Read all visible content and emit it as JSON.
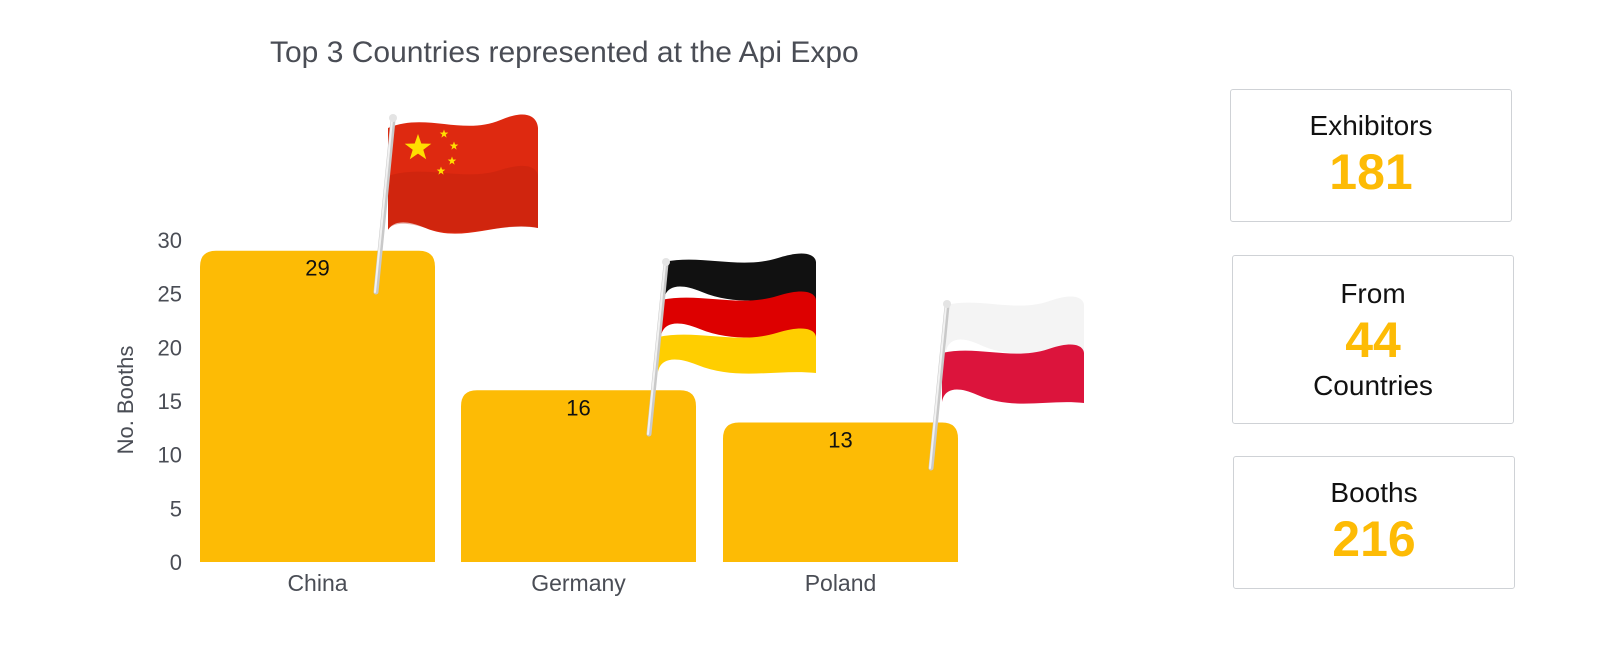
{
  "chart_data": {
    "type": "bar",
    "title": "Top 3 Countries represented at the Api Expo",
    "xlabel": "",
    "ylabel": "No. Booths",
    "categories": [
      "China",
      "Germany",
      "Poland"
    ],
    "values": [
      29,
      16,
      13
    ],
    "ylim": [
      0,
      30
    ],
    "yticks": [
      0,
      5,
      10,
      15,
      20,
      25,
      30
    ],
    "bar_color": "#FDBB05",
    "grid": false,
    "data_labels": true,
    "flag_icons": [
      "china-flag-icon",
      "germany-flag-icon",
      "poland-flag-icon"
    ]
  },
  "stats": {
    "exhibitors": {
      "label": "Exhibitors",
      "value": "181"
    },
    "countries": {
      "label_top": "From",
      "value": "44",
      "label_bottom": "Countries"
    },
    "booths": {
      "label": "Booths",
      "value": "216"
    },
    "value_color": "#FDBB05"
  }
}
